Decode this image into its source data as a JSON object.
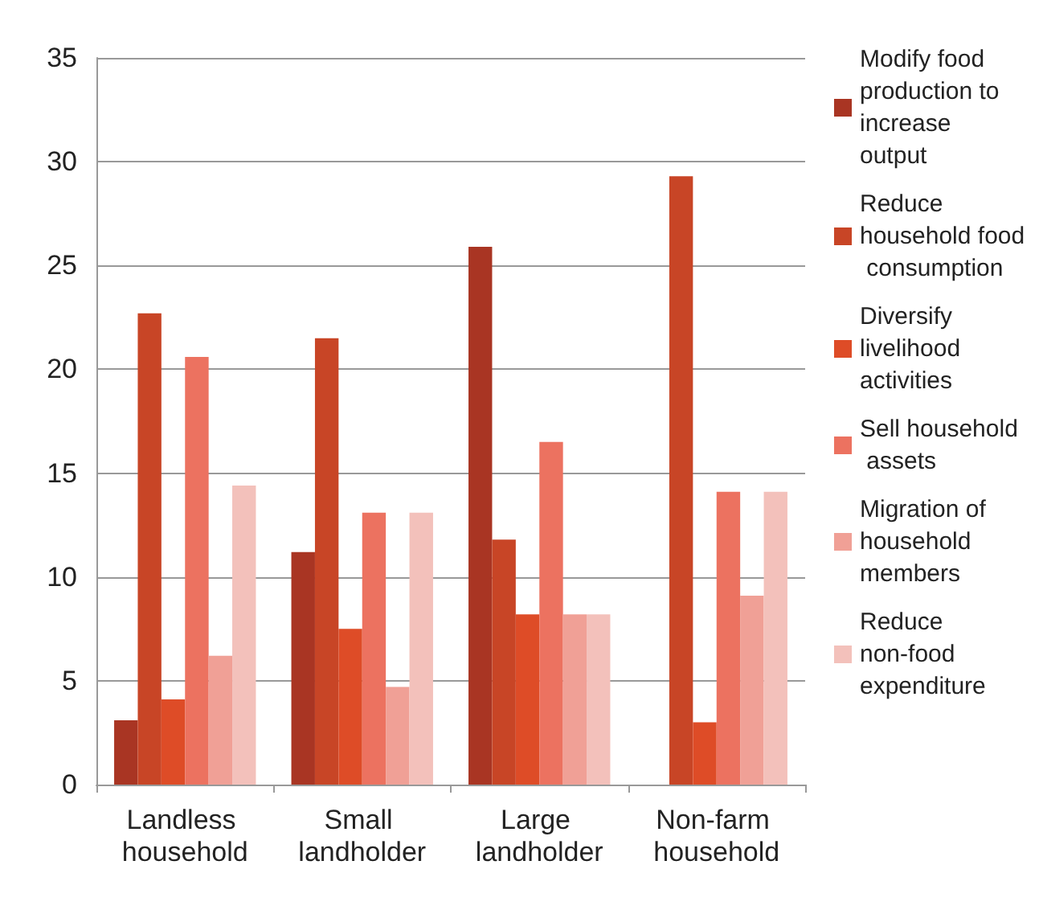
{
  "chart_data": {
    "type": "bar",
    "categories": [
      "Landless household",
      "Small landholder",
      "Large landholder",
      "Non-farm household"
    ],
    "series": [
      {
        "name": "Modify food production to increase output",
        "color": "#a93523",
        "values": [
          3.1,
          11.2,
          25.9,
          null
        ]
      },
      {
        "name": "Reduce household food consumption",
        "color": "#c84526",
        "values": [
          22.7,
          21.5,
          11.8,
          29.3
        ]
      },
      {
        "name": "Diversify livelihood activities",
        "color": "#de4c27",
        "values": [
          4.1,
          7.5,
          8.2,
          3.0
        ]
      },
      {
        "name": "Sell household assets",
        "color": "#ec7260",
        "values": [
          20.6,
          13.1,
          16.5,
          14.1
        ]
      },
      {
        "name": "Migration of household members",
        "color": "#f0a096",
        "values": [
          6.2,
          4.7,
          8.2,
          9.1
        ]
      },
      {
        "name": "Reduce non-food expenditure",
        "color": "#f3c1bb",
        "values": [
          14.4,
          13.1,
          8.2,
          14.1
        ]
      }
    ],
    "ylim": [
      0,
      35
    ],
    "yticks": [
      0,
      5,
      10,
      15,
      20,
      25,
      30,
      35
    ],
    "grid": "y",
    "legend": "right"
  }
}
